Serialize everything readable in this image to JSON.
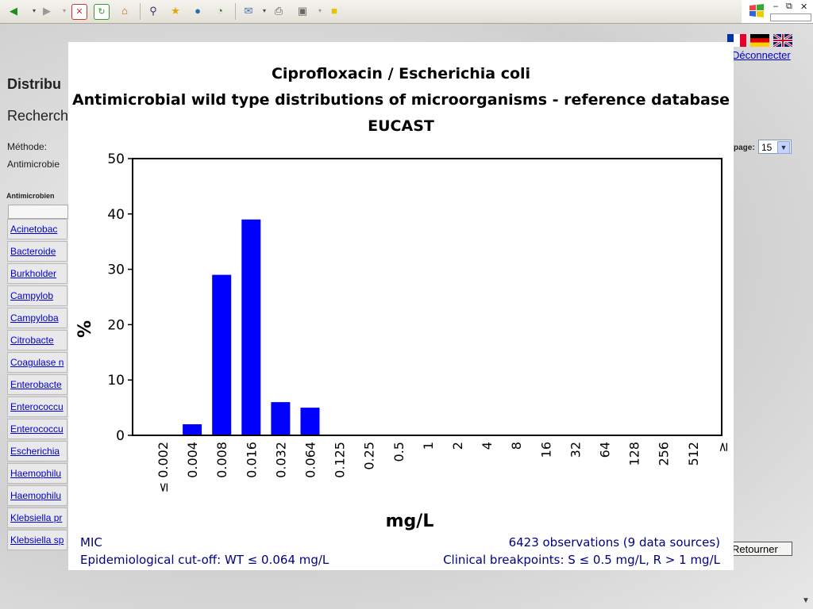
{
  "browser": {
    "toolbar_icons": [
      "back-arrow-icon",
      "forward-arrow-icon",
      "stop-icon",
      "refresh-icon",
      "home-icon",
      "search-icon",
      "favorites-star-icon",
      "media-icon",
      "history-icon",
      "mail-icon",
      "print-icon",
      "edit-icon",
      "discuss-icon"
    ]
  },
  "background_page": {
    "logout_link": "Déconnecter",
    "title": "Distribu",
    "subtitle": "Recherch",
    "method_label": "Méthode:",
    "antimicrobial_label": "Antimicrobie",
    "column_header": "Antimicrobien",
    "list": [
      "Acinetobac",
      "Bacteroide",
      "Burkholder",
      "Campylob",
      "Campyloba",
      "Citrobacte",
      "Coagulase n",
      "Enterobacte",
      "Enterococcu",
      "Enterococcu",
      "Escherichia",
      "Haemophilu",
      "Haemophilu",
      "Klebsiella pr",
      "Klebsiella sp"
    ],
    "per_page_label": "page:",
    "per_page_value": "15",
    "back_button": "Retourner"
  },
  "chart_data": {
    "type": "bar",
    "title": "Ciprofloxacin / Escherichia coli",
    "subtitle": "Antimicrobial wild type distributions of microorganisms - reference database",
    "source": "EUCAST",
    "ylabel": "%",
    "xlabel": "mg/L",
    "ylim": [
      0,
      50
    ],
    "yticks": [
      0,
      10,
      20,
      30,
      40,
      50
    ],
    "categories": [
      "≤ 0.002",
      "0.004",
      "0.008",
      "0.016",
      "0.032",
      "0.064",
      "0.125",
      "0.25",
      "0.5",
      "1",
      "2",
      "4",
      "8",
      "16",
      "32",
      "64",
      "128",
      "256",
      "512",
      "≥"
    ],
    "values": [
      0,
      2,
      29,
      39,
      6,
      5,
      0,
      0,
      0,
      0,
      0,
      0,
      0,
      0,
      0,
      0,
      0,
      0,
      0,
      0
    ],
    "bar_color": "#0000ff",
    "footer": {
      "method": "MIC",
      "observations": "6423 observations (9 data sources)",
      "ecoff": "Epidemiological cut-off: WT ≤ 0.064 mg/L",
      "breakpoints": "Clinical breakpoints: S ≤ 0.5 mg/L,  R > 1 mg/L"
    }
  }
}
